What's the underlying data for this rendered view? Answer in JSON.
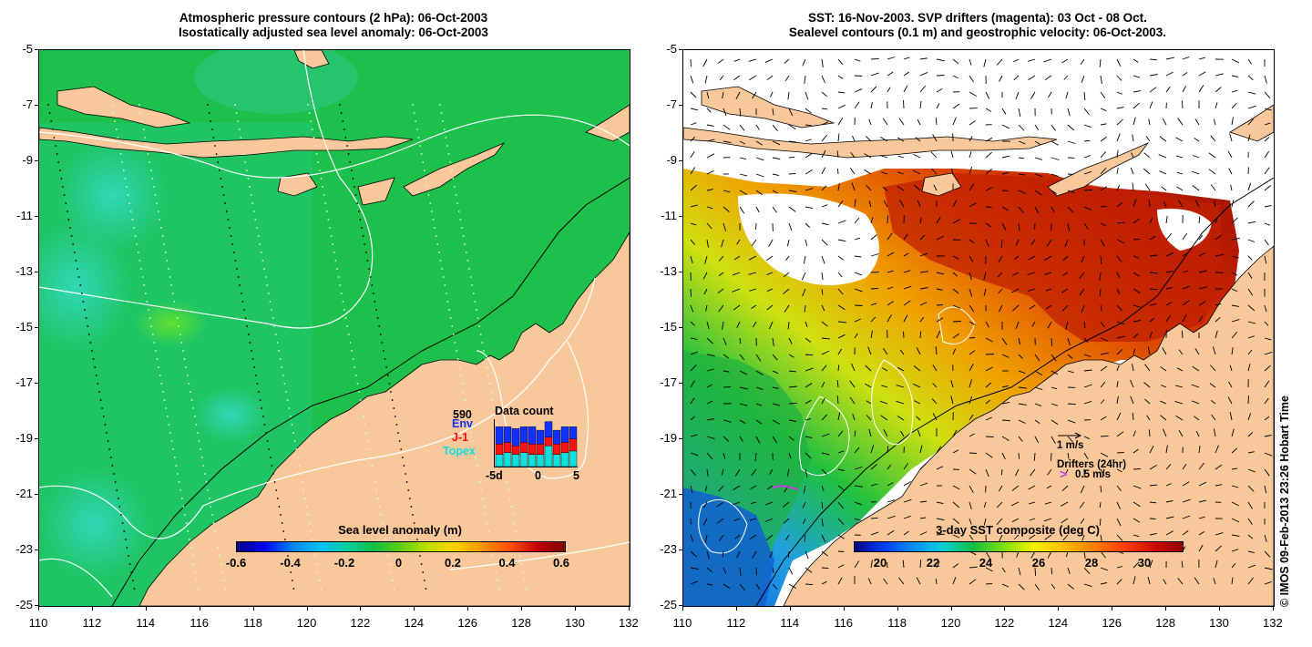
{
  "left_panel": {
    "title_line1": "Atmospheric pressure contours (2 hPa): 06-Oct-2003",
    "title_line2": "Isostatically adjusted sea level anomaly: 06-Oct-2003",
    "y_ticks": [
      "-5",
      "-7",
      "-9",
      "-11",
      "-13",
      "-15",
      "-17",
      "-19",
      "-21",
      "-23",
      "-25"
    ],
    "x_ticks": [
      "110",
      "112",
      "114",
      "116",
      "118",
      "120",
      "122",
      "124",
      "126",
      "128",
      "130",
      "132"
    ],
    "colorbar": {
      "title": "Sea level anomaly (m)",
      "labels": [
        "-0.6",
        "-0.4",
        "-0.2",
        "0",
        "0.2",
        "0.4",
        "0.6"
      ]
    },
    "data_count": {
      "title": "Data count",
      "max_value": "590",
      "series": [
        "Env",
        "J-1",
        "Topex"
      ],
      "series_colors": [
        "#1030ff",
        "#ff1010",
        "#10e0e0"
      ],
      "axis_labels": [
        "-5d",
        "0",
        "5"
      ]
    }
  },
  "right_panel": {
    "title_line1": "SST: 16-Nov-2003. SVP drifters (magenta): 03 Oct - 08 Oct.",
    "title_line2": "Sealevel contours (0.1 m) and geostrophic velocity: 06-Oct-2003.",
    "y_ticks": [
      "-5",
      "-7",
      "-9",
      "-11",
      "-13",
      "-15",
      "-17",
      "-19",
      "-21",
      "-23",
      "-25"
    ],
    "x_ticks": [
      "110",
      "112",
      "114",
      "116",
      "118",
      "120",
      "122",
      "124",
      "126",
      "128",
      "130",
      "132"
    ],
    "colorbar": {
      "title": "3-day SST composite (deg C)",
      "labels": [
        "20",
        "22",
        "24",
        "26",
        "28",
        "30"
      ]
    },
    "legend": {
      "velocity_scale": "1 m/s",
      "drifters_label": "Drifters (24hr)",
      "drifter_marker": ">",
      "drifter_scale": "0.5 m/s"
    }
  },
  "copyright": "© IMOS 09-Feb-2013 23:26 Hobart Time",
  "colors": {
    "land": "#f8c89a",
    "ocean_green": "#18c040",
    "sst_red": "#c02000",
    "drifter_magenta": "#c040e0"
  }
}
